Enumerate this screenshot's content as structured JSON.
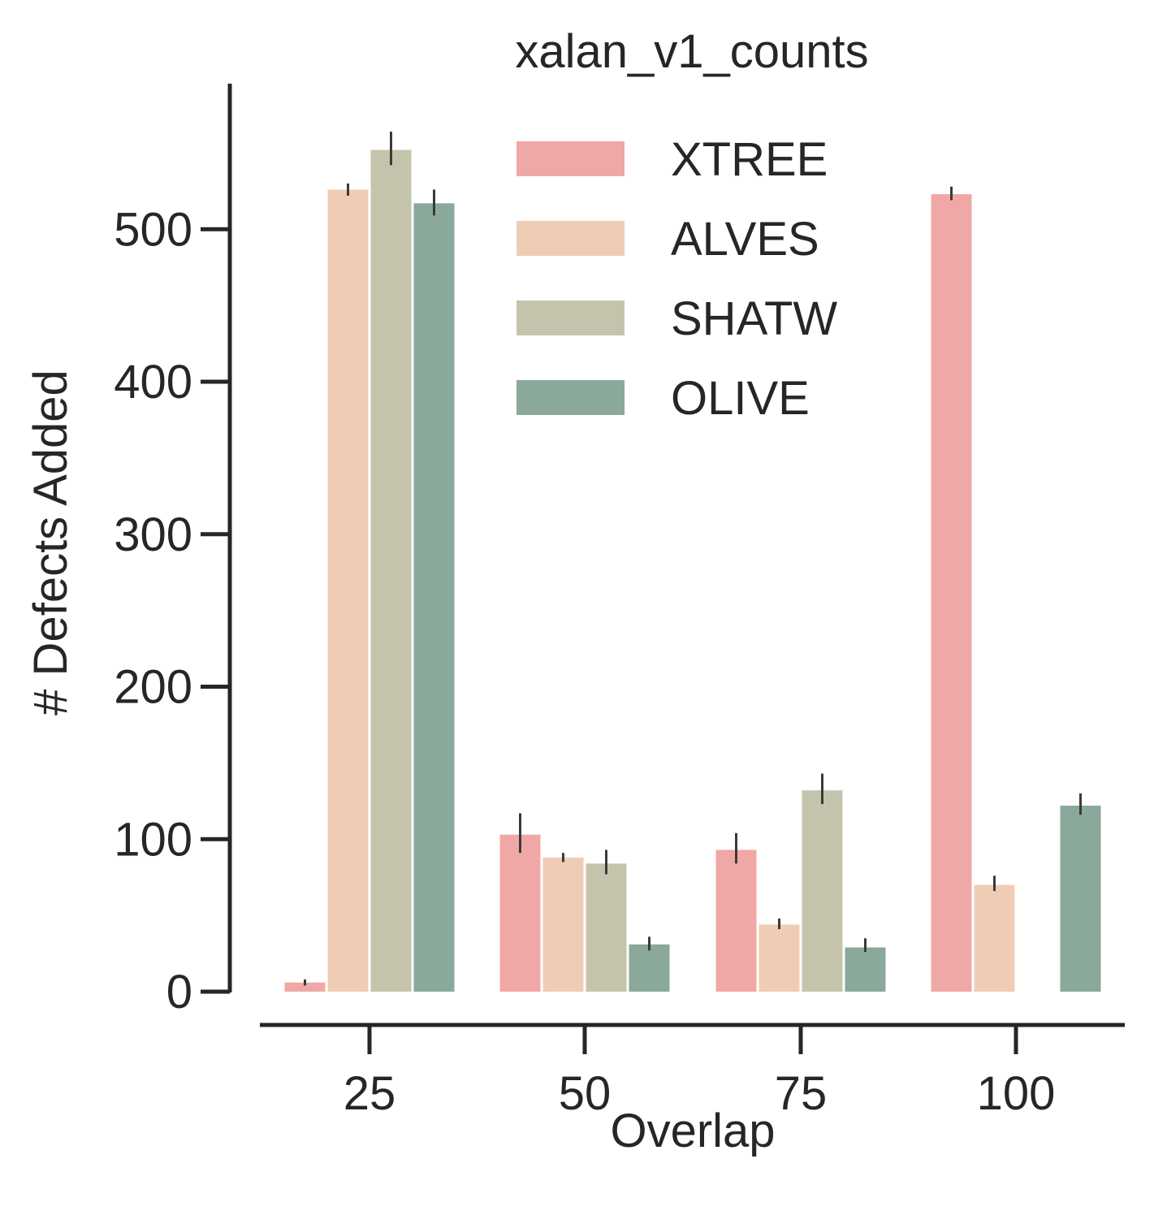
{
  "chart_data": {
    "type": "bar",
    "title": "xalan_v1_counts",
    "xlabel": "Overlap",
    "ylabel": "# Defects Added",
    "categories": [
      "25",
      "50",
      "75",
      "100"
    ],
    "ylim": [
      0,
      580
    ],
    "yticks": [
      0,
      100,
      200,
      300,
      400,
      500
    ],
    "legend_position": "top-right",
    "series": [
      {
        "name": "XTREE",
        "color": "#f0a8a6",
        "values": [
          6,
          103,
          93,
          523
        ],
        "err_low": [
          4,
          91,
          84,
          519
        ],
        "err_high": [
          8,
          117,
          104,
          528
        ]
      },
      {
        "name": "ALVES",
        "color": "#efcdb4",
        "values": [
          526,
          88,
          44,
          70
        ],
        "err_low": [
          522,
          85,
          41,
          66
        ],
        "err_high": [
          530,
          91,
          48,
          76
        ]
      },
      {
        "name": "SHATW",
        "color": "#c4c4ac",
        "values": [
          552,
          84,
          132,
          null
        ],
        "err_low": [
          542,
          77,
          123,
          null
        ],
        "err_high": [
          564,
          93,
          143,
          null
        ]
      },
      {
        "name": "OLIVE",
        "color": "#8aa99a",
        "values": [
          517,
          31,
          29,
          122
        ],
        "err_low": [
          509,
          27,
          26,
          116
        ],
        "err_high": [
          526,
          36,
          35,
          130
        ]
      }
    ]
  }
}
